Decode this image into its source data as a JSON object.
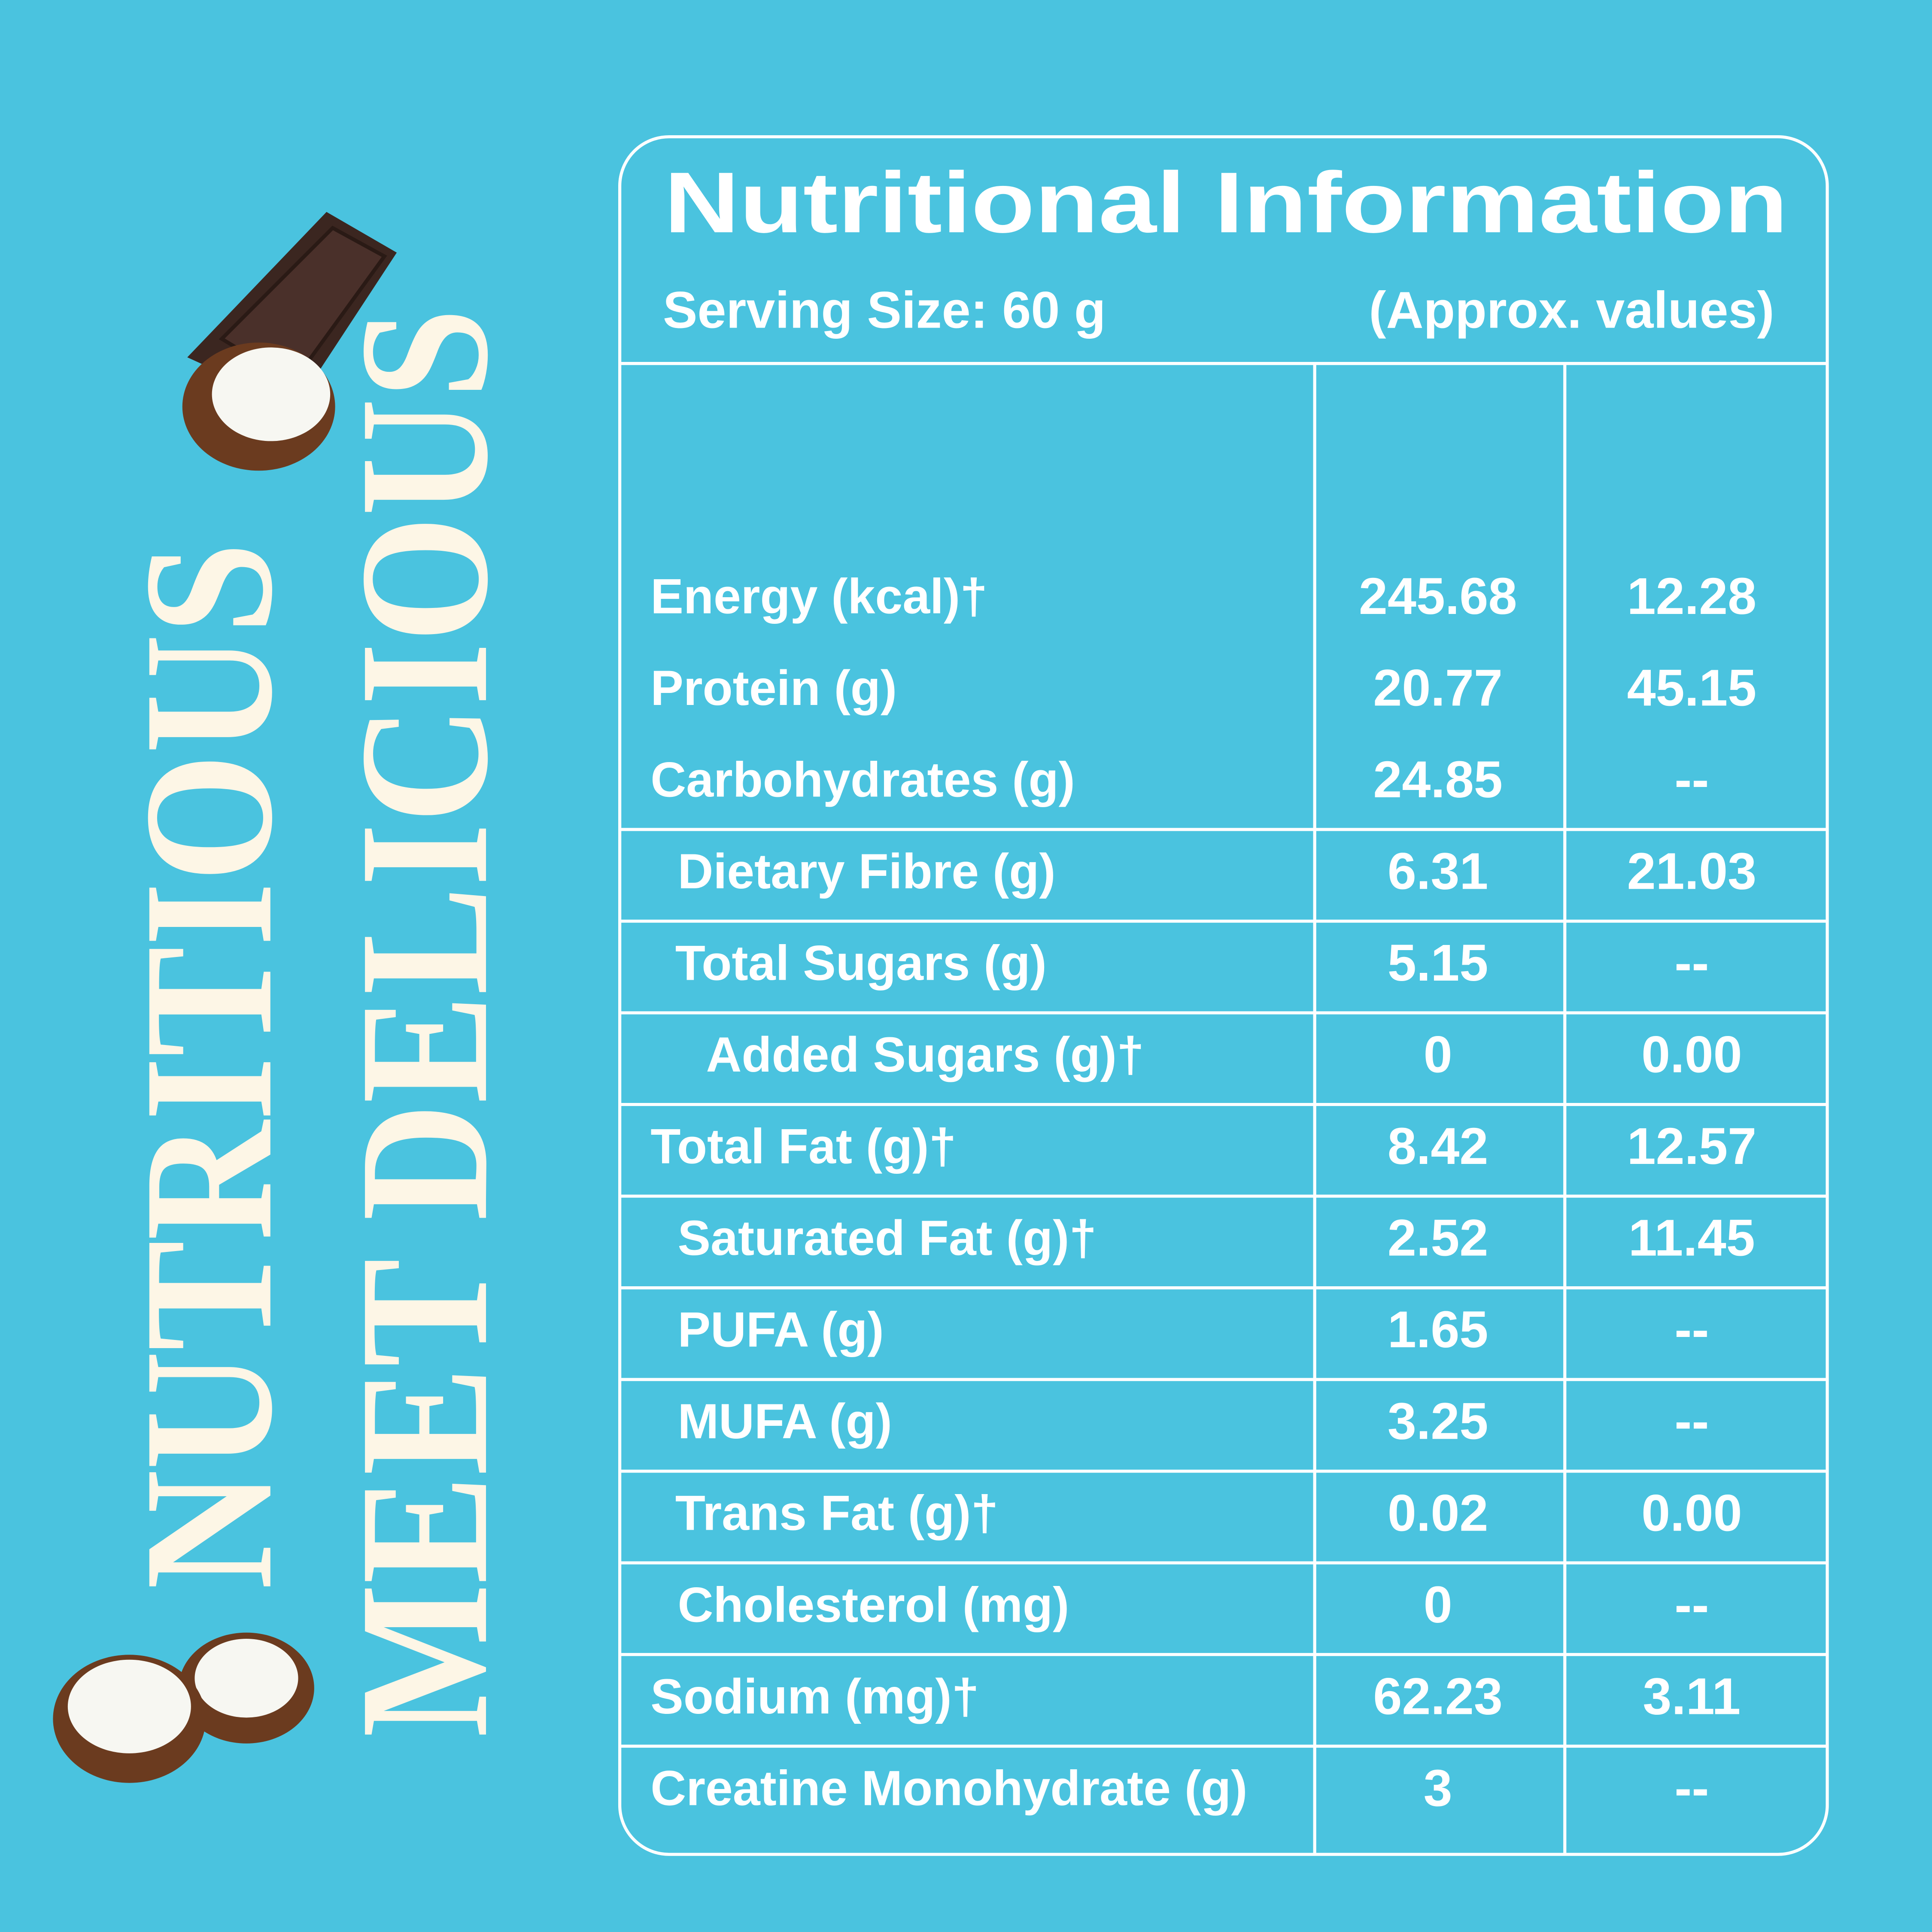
{
  "side_text": [
    "NUTRITIOUS",
    "MEET DELICIOUS"
  ],
  "header": {
    "title": "Nutritional Information",
    "serving_size": "Serving Size: 60 g",
    "note": "(Approx. values)"
  },
  "table": {
    "rows": [
      [
        "Energy (kcal)†",
        "245.68",
        "12.28"
      ],
      [
        "Protein (g)",
        "20.77",
        "45.15"
      ],
      [
        "Carbohydrates (g)",
        "24.85",
        "--"
      ],
      [
        "Dietary Fibre (g)",
        "6.31",
        "21.03"
      ],
      [
        "Total Sugars (g)",
        "5.15",
        "--"
      ],
      [
        "Added Sugars (g)†",
        "0",
        "0.00"
      ],
      [
        "Total Fat (g)†",
        "8.42",
        "12.57"
      ],
      [
        "Saturated Fat (g)†",
        "2.52",
        "11.45"
      ],
      [
        "PUFA (g)",
        "1.65",
        "--"
      ],
      [
        "MUFA (g)",
        "3.25",
        "--"
      ],
      [
        "Trans Fat (g)†",
        "0.02",
        "0.00"
      ],
      [
        "Cholesterol (mg)",
        "0",
        "--"
      ],
      [
        "Sodium (mg)†",
        "62.23",
        "3.11"
      ],
      [
        "Creatine Monohydrate (g)",
        "3",
        "--"
      ]
    ]
  }
}
